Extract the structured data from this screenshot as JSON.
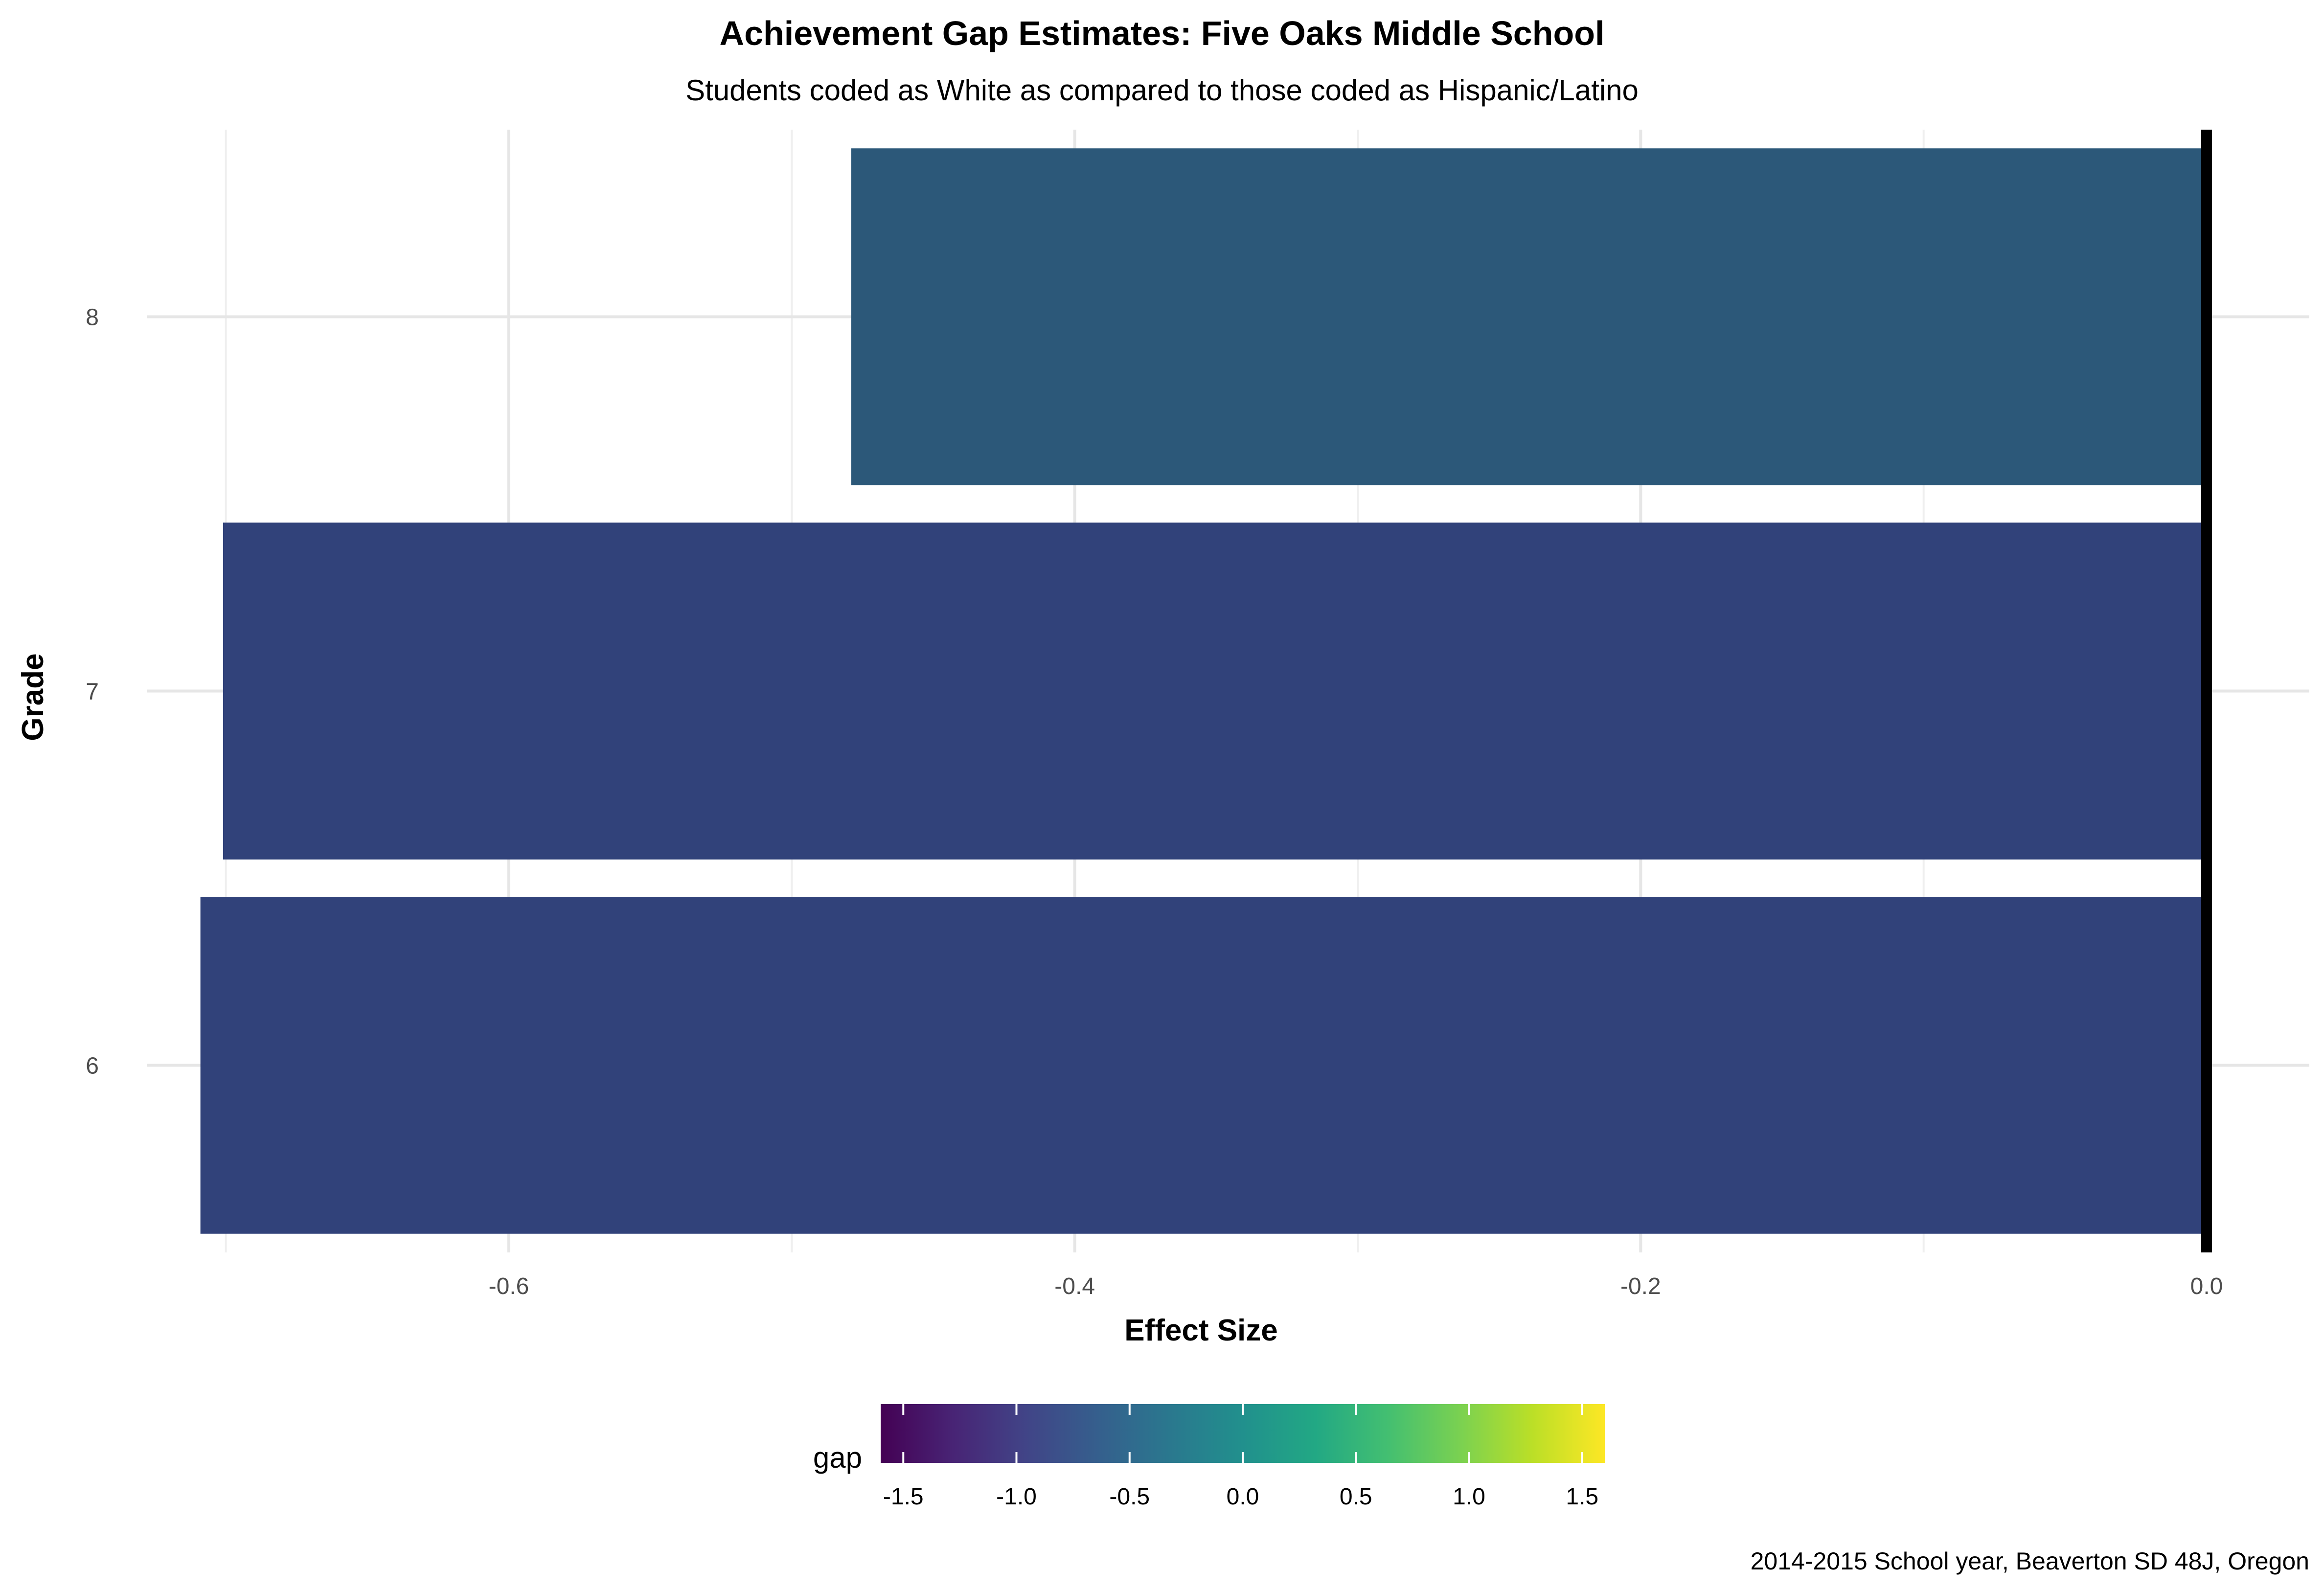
{
  "chart_data": {
    "type": "bar",
    "orientation": "horizontal",
    "title": "Achievement Gap Estimates: Five Oaks Middle School",
    "subtitle": "Students coded as White as compared to those coded as Hispanic/Latino",
    "xlabel": "Effect Size",
    "ylabel": "Grade",
    "caption": "2014-2015 School year, Beaverton SD 48J, Oregon",
    "categories": [
      "6",
      "7",
      "8"
    ],
    "values": [
      -0.709,
      -0.701,
      -0.479
    ],
    "xlim": [
      -0.72,
      0.0
    ],
    "x_ticks": [
      -0.6,
      -0.4,
      -0.2,
      0.0
    ],
    "x_tick_labels": [
      "-0.6",
      "-0.4",
      "-0.2",
      "0.0"
    ],
    "grid": true,
    "reference_line_x": 0,
    "bar_colors": [
      "#31427A",
      "#31427A",
      "#2C5879"
    ],
    "legend": {
      "title": "gap",
      "position": "bottom",
      "type": "colorbar",
      "colormap": "viridis",
      "range": [
        -1.6,
        1.6
      ],
      "ticks": [
        -1.5,
        -1.0,
        -0.5,
        0.0,
        0.5,
        1.0,
        1.5
      ],
      "tick_labels": [
        "-1.5",
        "-1.0",
        "-0.5",
        "0.0",
        "0.5",
        "1.0",
        "1.5"
      ]
    }
  }
}
